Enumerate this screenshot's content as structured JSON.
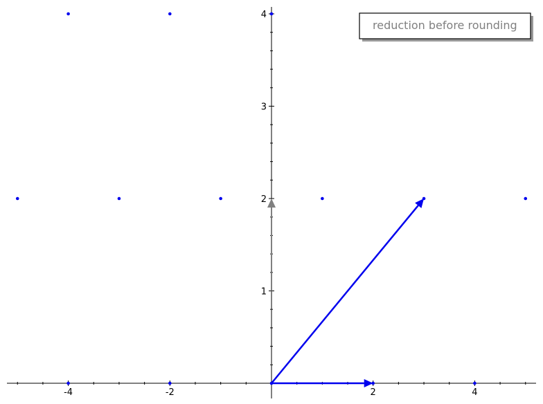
{
  "chart_data": {
    "type": "scatter",
    "title": "",
    "xlabel": "",
    "ylabel": "",
    "xlim": [
      -5.2,
      5.2
    ],
    "ylim": [
      -0.05,
      4.07
    ],
    "grid": false,
    "x_ticks": [
      -4,
      -2,
      2,
      4
    ],
    "y_ticks": [
      1,
      2,
      3,
      4
    ],
    "x_tick_labels": [
      "-4",
      "-2",
      "2",
      "4"
    ],
    "y_tick_labels": [
      "1",
      "2",
      "3",
      "4"
    ],
    "points": [
      {
        "x": -4,
        "y": 4
      },
      {
        "x": -2,
        "y": 4
      },
      {
        "x": 0,
        "y": 4
      },
      {
        "x": -5,
        "y": 2
      },
      {
        "x": -3,
        "y": 2
      },
      {
        "x": -1,
        "y": 2
      },
      {
        "x": 1,
        "y": 2
      },
      {
        "x": 3,
        "y": 2
      },
      {
        "x": 5,
        "y": 2
      },
      {
        "x": -4,
        "y": 0
      },
      {
        "x": -2,
        "y": 0
      },
      {
        "x": 0,
        "y": 0
      },
      {
        "x": 2,
        "y": 0
      },
      {
        "x": 4,
        "y": 0
      }
    ],
    "vectors": [
      {
        "from": [
          0,
          0
        ],
        "to": [
          3,
          2
        ],
        "color": "#0000ee"
      },
      {
        "from": [
          0,
          0
        ],
        "to": [
          2,
          0
        ],
        "color": "#0000ee"
      },
      {
        "from": [
          0,
          0
        ],
        "to": [
          0,
          2
        ],
        "color": "#808080",
        "style": "dotted"
      }
    ],
    "point_color": "#0000ee",
    "legend": {
      "placement": "top-right",
      "entries": [
        "reduction before rounding"
      ]
    }
  }
}
